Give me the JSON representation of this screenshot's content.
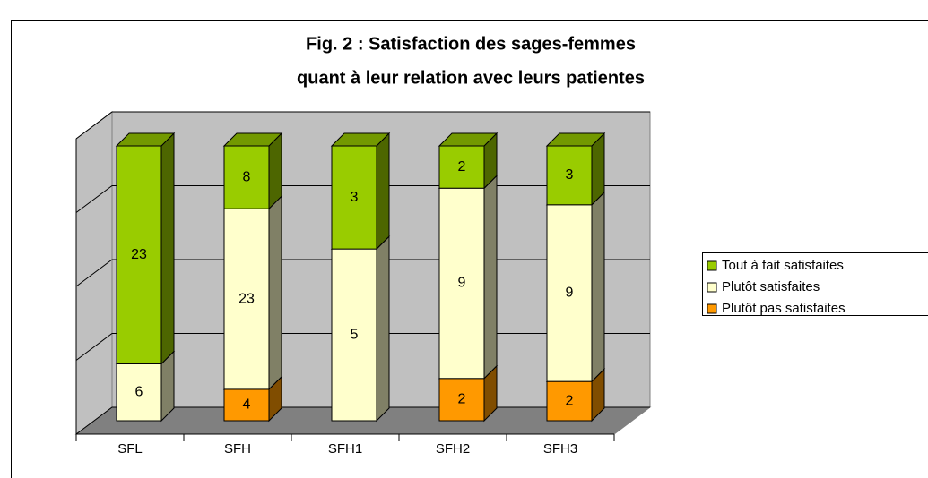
{
  "chart_data": {
    "type": "bar",
    "stacking": "percent",
    "title": [
      "Fig. 2 : Satisfaction des sages-femmes",
      "quant à leur relation avec leurs patientes"
    ],
    "categories": [
      "SFL",
      "SFH",
      "SFH1",
      "SFH2",
      "SFH3"
    ],
    "series": [
      {
        "name": "Plutôt pas satisfaites",
        "color": "#ff9900",
        "values": [
          null,
          4,
          null,
          2,
          2
        ]
      },
      {
        "name": "Plutôt satisfaites",
        "color": "#ffffcc",
        "values": [
          6,
          23,
          5,
          9,
          9
        ]
      },
      {
        "name": "Tout à fait satisfaites",
        "color": "#99cc00",
        "values": [
          23,
          8,
          3,
          2,
          3
        ]
      }
    ],
    "ylim": [
      0,
      100
    ],
    "yticks": [
      0,
      25,
      50,
      75,
      100
    ],
    "grid": true,
    "legend": "right"
  }
}
